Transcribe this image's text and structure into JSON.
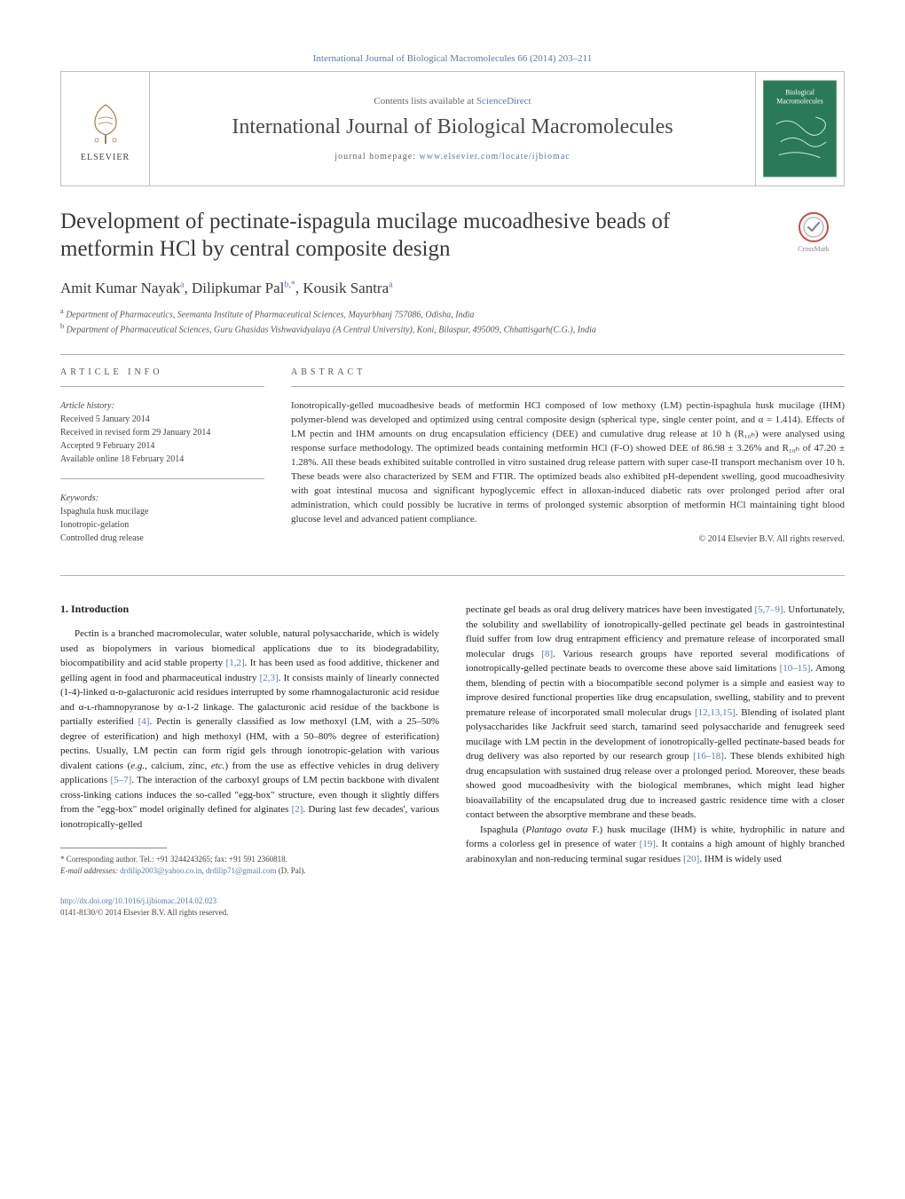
{
  "citation_header": "International Journal of Biological Macromolecules 66 (2014) 203–211",
  "header": {
    "contents_prefix": "Contents lists available at ",
    "contents_link": "ScienceDirect",
    "journal_name": "International Journal of Biological Macromolecules",
    "homepage_prefix": "journal homepage: ",
    "homepage_link": "www.elsevier.com/locate/ijbiomac",
    "elsevier_label": "ELSEVIER",
    "cover_title_top": "Biological",
    "cover_title_bottom": "Macromolecules"
  },
  "crossmark_label": "CrossMark",
  "article": {
    "title": "Development of pectinate-ispagula mucilage mucoadhesive beads of metformin HCl by central composite design",
    "authors_html": "Amit Kumar Nayak|a|, Dilipkumar Pal|b,*|, Kousik Santra|a",
    "affiliations": {
      "a": "Department of Pharmaceutics, Seemanta Institute of Pharmaceutical Sciences, Mayurbhanj 757086, Odisha, India",
      "b": "Department of Pharmaceutical Sciences, Guru Ghasidas Vishwavidyalaya (A Central University), Koni, Bilaspur, 495009, Chhattisgarh(C.G.), India"
    }
  },
  "article_info": {
    "label": "article info",
    "history_heading": "Article history:",
    "history": [
      "Received 5 January 2014",
      "Received in revised form 29 January 2014",
      "Accepted 9 February 2014",
      "Available online 18 February 2014"
    ],
    "keywords_heading": "Keywords:",
    "keywords": [
      "Ispaghula husk mucilage",
      "Ionotropic-gelation",
      "Controlled drug release"
    ]
  },
  "abstract": {
    "label": "abstract",
    "text": "Ionotropically-gelled mucoadhesive beads of metformin HCl composed of low methoxy (LM) pectin-ispaghula husk mucilage (IHM) polymer-blend was developed and optimized using central composite design (spherical type, single center point, and α = 1.414). Effects of LM pectin and IHM amounts on drug encapsulation efficiency (DEE) and cumulative drug release at 10 h (R₁₀ₕ) were analysed using response surface methodology. The optimized beads containing metformin HCl (F-O) showed DEE of 86.98 ± 3.26% and R₁₀ₕ of 47.20 ± 1.28%. All these beads exhibited suitable controlled in vitro sustained drug release pattern with super case-II transport mechanism over 10 h. These beads were also characterized by SEM and FTIR. The optimized beads also exhibited pH-dependent swelling, good mucoadhesivity with goat intestinal mucosa and significant hypoglycemic effect in alloxan-induced diabetic rats over prolonged period after oral administration, which could possibly be lucrative in terms of prolonged systemic absorption of metformin HCl maintaining tight blood glucose level and advanced patient compliance.",
    "copyright": "© 2014 Elsevier B.V. All rights reserved."
  },
  "body": {
    "section_number": "1.",
    "section_title": "Introduction",
    "col1_p1": "Pectin is a branched macromolecular, water soluble, natural polysaccharide, which is widely used as biopolymers in various biomedical applications due to its biodegradability, biocompatibility and acid stable property [1,2]. It has been used as food additive, thickener and gelling agent in food and pharmaceutical industry [2,3]. It consists mainly of linearly connected (1-4)-linked α-ᴅ-galacturonic acid residues interrupted by some rhamnogalacturonic acid residue and α-ʟ-rhamnopyranose by α-1-2 linkage. The galacturonic acid residue of the backbone is partially esterified [4]. Pectin is generally classified as low methoxyl (LM, with a 25–50% degree of esterification) and high methoxyl (HM, with a 50–80% degree of esterification) pectins. Usually, LM pectin can form rigid gels through ionotropic-gelation with various divalent cations (e.g., calcium, zinc, etc.) from the use as effective vehicles in drug delivery applications [5–7]. The interaction of the carboxyl groups of LM pectin backbone with divalent cross-linking cations induces the so-called \"egg-box\" structure, even though it slightly differs from the \"egg-box\" model originally defined for alginates [2]. During last few decades', various ionotropically-gelled",
    "col2_p1": "pectinate gel beads as oral drug delivery matrices have been investigated [5,7–9]. Unfortunately, the solubility and swellability of ionotropically-gelled pectinate gel beads in gastrointestinal fluid suffer from low drug entrapment efficiency and premature release of incorporated small molecular drugs [8]. Various research groups have reported several modifications of ionotropically-gelled pectinate beads to overcome these above said limitations [10–15]. Among them, blending of pectin with a biocompatible second polymer is a simple and easiest way to improve desired functional properties like drug encapsulation, swelling, stability and to prevent premature release of incorporated small molecular drugs [12,13,15]. Blending of isolated plant polysaccharides like Jackfruit seed starch, tamarind seed polysaccharide and fenugreek seed mucilage with LM pectin in the development of ionotropically-gelled pectinate-based beads for drug delivery was also reported by our research group [16–18]. These blends exhibited high drug encapsulation with sustained drug release over a prolonged period. Moreover, these beads showed good mucoadhesivity with the biological membranes, which might lead higher bioavailability of the encapsulated drug due to increased gastric residence time with a closer contact between the absorptive membrane and these beads.",
    "col2_p2": "Ispaghula (Plantago ovata F.) husk mucilage (IHM) is white, hydrophilic in nature and forms a colorless gel in presence of water [19]. It contains a high amount of highly branched arabinoxylan and non-reducing terminal sugar residues [20]. IHM is widely used"
  },
  "footnotes": {
    "corr": "* Corresponding author. Tel.: +91 3244243265; fax: +91 591 2360818.",
    "email_label": "E-mail addresses: ",
    "email1": "drdilip2003@yahoo.co.in",
    "email2": "drdilip71@gmail.com",
    "email_suffix": " (D. Pal)."
  },
  "doi": {
    "link": "http://dx.doi.org/10.1016/j.ijbiomac.2014.02.023",
    "issn_line": "0141-8130/© 2014 Elsevier B.V. All rights reserved."
  },
  "colors": {
    "link": "#5b7ca8",
    "text": "#1a1a1a",
    "cover_bg": "#2a7a5a",
    "cover_border": "#8fbf9f"
  }
}
